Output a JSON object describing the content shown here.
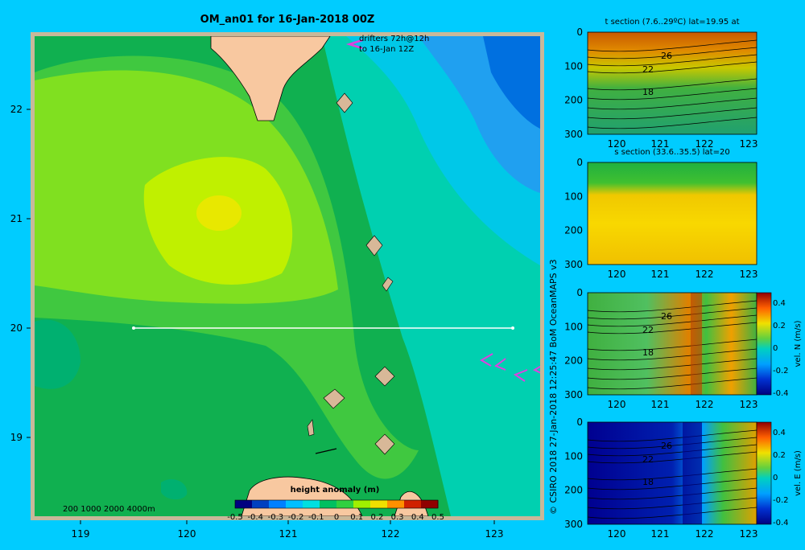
{
  "title": "OM_an01 for 16-Jan-2018 00Z",
  "credit": "© CSIRO 2018   27-Jan-2018 12:25:47 BoM OceanMAPS v3",
  "drifters": {
    "line1": "drifters 72h@12h",
    "line2": "to 16-Jan 12Z"
  },
  "depth_legend": "200  1000  2000  4000m",
  "map": {
    "x_ticks": [
      "119",
      "120",
      "121",
      "122",
      "123"
    ],
    "y_ticks": [
      "22",
      "21",
      "20",
      "19"
    ],
    "colorbar": {
      "label": "height anomaly (m)",
      "ticks": [
        "-0.5",
        "-0.4",
        "-0.3",
        "-0.2",
        "-0.1",
        "0",
        "0.1",
        "0.2",
        "0.3",
        "0.4",
        "0.5"
      ],
      "colors": [
        "#000080",
        "#0040c0",
        "#0080ff",
        "#00bfff",
        "#00e0e0",
        "#00c060",
        "#30d040",
        "#a0f000",
        "#f0e000",
        "#ff9000",
        "#d02000",
        "#900000"
      ]
    }
  },
  "panels": [
    {
      "title": "t section (7.6..29ºC) lat=19.95 at",
      "y_ticks": [
        "0",
        "100",
        "200",
        "300"
      ],
      "x_ticks": [
        "120",
        "121",
        "122",
        "123"
      ],
      "contour_labels": [
        "26",
        "22",
        "18"
      ]
    },
    {
      "title": "s section (33.6..35.5) lat=20",
      "y_ticks": [
        "0",
        "100",
        "200",
        "300"
      ],
      "x_ticks": [
        "120",
        "121",
        "122",
        "123"
      ],
      "contour_labels": []
    },
    {
      "title": "",
      "y_ticks": [
        "0",
        "100",
        "200",
        "300"
      ],
      "x_ticks": [
        "120",
        "121",
        "122",
        "123"
      ],
      "contour_labels": [
        "26",
        "22",
        "18"
      ],
      "cbar_ticks": [
        "0.4",
        "0.2",
        "0",
        "-0.2",
        "-0.4"
      ],
      "cbar_label": "vel. N (m/s)"
    },
    {
      "title": "",
      "y_ticks": [
        "0",
        "100",
        "200",
        "300"
      ],
      "x_ticks": [
        "120",
        "121",
        "122",
        "123"
      ],
      "contour_labels": [
        "26",
        "22",
        "18"
      ],
      "cbar_ticks": [
        "0.4",
        "0.2",
        "0",
        "-0.2",
        "-0.4"
      ],
      "cbar_label": "vel. E (m/s)"
    }
  ]
}
